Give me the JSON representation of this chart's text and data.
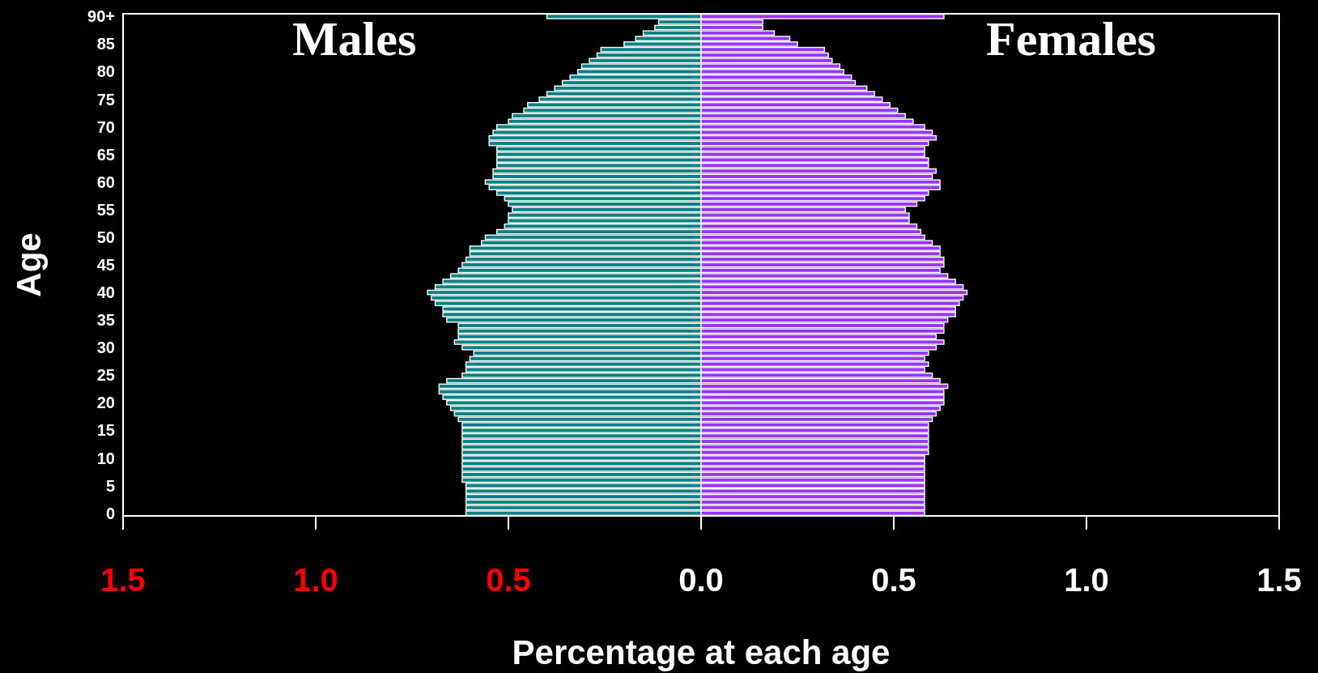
{
  "chart_data": {
    "type": "bar",
    "orientation": "horizontal",
    "stacked": true,
    "xlabel": "Percentage at each age",
    "ylabel": "Age",
    "categories": [
      "90+",
      null,
      null,
      null,
      null,
      "85",
      null,
      null,
      null,
      null,
      "80",
      null,
      null,
      null,
      null,
      "75",
      null,
      null,
      null,
      null,
      "70",
      null,
      null,
      null,
      null,
      "65",
      null,
      null,
      null,
      null,
      "60",
      null,
      null,
      null,
      null,
      "55",
      null,
      null,
      null,
      null,
      "50",
      null,
      null,
      null,
      null,
      "45",
      null,
      null,
      null,
      null,
      "40",
      null,
      null,
      null,
      null,
      "35",
      null,
      null,
      null,
      null,
      "30",
      null,
      null,
      null,
      null,
      "25",
      null,
      null,
      null,
      null,
      "20",
      null,
      null,
      null,
      null,
      "15",
      null,
      null,
      null,
      null,
      "10",
      null,
      null,
      null,
      null,
      "5",
      null,
      null,
      null,
      null,
      "0"
    ],
    "series": [
      {
        "name": "Males",
        "color": "#008080",
        "values": [
          -0.4,
          -0.11,
          -0.12,
          -0.15,
          -0.17,
          -0.2,
          -0.26,
          -0.27,
          -0.29,
          -0.31,
          -0.32,
          -0.34,
          -0.36,
          -0.38,
          -0.4,
          -0.42,
          -0.45,
          -0.46,
          -0.49,
          -0.5,
          -0.53,
          -0.54,
          -0.55,
          -0.55,
          -0.53,
          -0.53,
          -0.53,
          -0.53,
          -0.54,
          -0.54,
          -0.56,
          -0.55,
          -0.53,
          -0.51,
          -0.5,
          -0.49,
          -0.5,
          -0.5,
          -0.51,
          -0.53,
          -0.56,
          -0.57,
          -0.6,
          -0.6,
          -0.61,
          -0.62,
          -0.63,
          -0.65,
          -0.67,
          -0.69,
          -0.71,
          -0.7,
          -0.69,
          -0.67,
          -0.67,
          -0.66,
          -0.63,
          -0.63,
          -0.63,
          -0.64,
          -0.62,
          -0.59,
          -0.6,
          -0.61,
          -0.61,
          -0.62,
          -0.66,
          -0.68,
          -0.68,
          -0.67,
          -0.66,
          -0.65,
          -0.64,
          -0.63,
          -0.62,
          -0.62,
          -0.62,
          -0.62,
          -0.62,
          -0.62,
          -0.62,
          -0.62,
          -0.62,
          -0.62,
          -0.62,
          -0.61,
          -0.61,
          -0.61,
          -0.61,
          -0.61,
          -0.61
        ]
      },
      {
        "name": "Females",
        "color": "#9933ff",
        "values": [
          0.63,
          0.16,
          0.16,
          0.19,
          0.23,
          0.25,
          0.32,
          0.33,
          0.34,
          0.36,
          0.37,
          0.39,
          0.4,
          0.43,
          0.45,
          0.47,
          0.49,
          0.51,
          0.53,
          0.55,
          0.58,
          0.6,
          0.61,
          0.59,
          0.58,
          0.58,
          0.59,
          0.59,
          0.61,
          0.6,
          0.62,
          0.62,
          0.59,
          0.58,
          0.56,
          0.53,
          0.54,
          0.54,
          0.56,
          0.57,
          0.58,
          0.6,
          0.62,
          0.62,
          0.63,
          0.63,
          0.62,
          0.64,
          0.66,
          0.68,
          0.69,
          0.68,
          0.67,
          0.66,
          0.66,
          0.64,
          0.63,
          0.63,
          0.61,
          0.63,
          0.61,
          0.59,
          0.58,
          0.59,
          0.58,
          0.6,
          0.62,
          0.64,
          0.63,
          0.63,
          0.63,
          0.62,
          0.61,
          0.6,
          0.59,
          0.59,
          0.59,
          0.59,
          0.59,
          0.59,
          0.58,
          0.58,
          0.58,
          0.58,
          0.58,
          0.58,
          0.58,
          0.58,
          0.58,
          0.58,
          0.58
        ]
      }
    ],
    "xlim": [
      -1.5,
      1.5
    ],
    "xticks": [
      {
        "value": -1.5,
        "label": "1.5"
      },
      {
        "value": -1,
        "label": "1.0"
      },
      {
        "value": -0.5,
        "label": "0.5"
      },
      {
        "value": 0,
        "label": "0.0"
      },
      0.5,
      {
        "value": 1,
        "label": "1.0"
      },
      1.5
    ],
    "grid": false
  }
}
